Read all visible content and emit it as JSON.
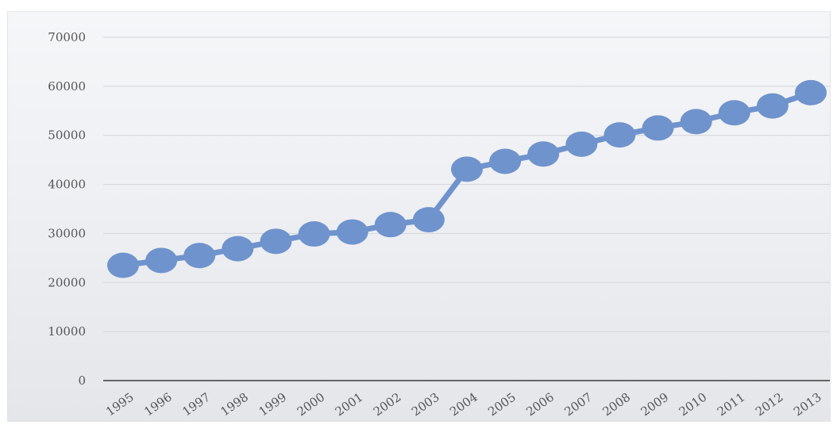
{
  "chart_data": {
    "type": "line",
    "title": "",
    "xlabel": "",
    "ylabel": "",
    "categories": [
      "1995",
      "1996",
      "1997",
      "1998",
      "1999",
      "2000",
      "2001",
      "2002",
      "2003",
      "2004",
      "2005",
      "2006",
      "2007",
      "2008",
      "2009",
      "2010",
      "2011",
      "2012",
      "2013"
    ],
    "series": [
      {
        "values": [
          23500,
          24500,
          25500,
          26900,
          28400,
          29900,
          30300,
          31800,
          32800,
          43100,
          44700,
          46200,
          48200,
          50100,
          51500,
          52800,
          54600,
          56000,
          58700
        ]
      }
    ],
    "yticks": [
      "0",
      "10000",
      "20000",
      "30000",
      "40000",
      "50000",
      "60000",
      "70000"
    ],
    "ylim": [
      0,
      70000
    ],
    "grid": true,
    "legend": "none",
    "colors": {
      "series": "#6f93cc",
      "grid": "#d3d5da",
      "axis": "#3a3a3a"
    }
  }
}
